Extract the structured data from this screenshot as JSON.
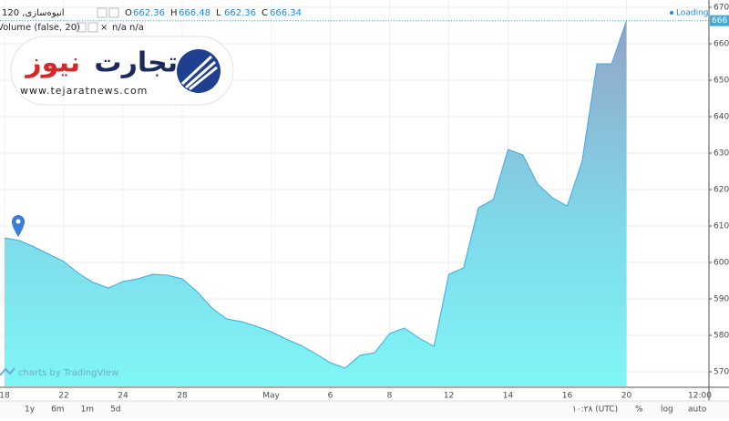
{
  "header": {
    "title": "انبوه‌سازی, 120",
    "ohlc": [
      {
        "label": "O",
        "value": 662.36
      },
      {
        "label": "H",
        "value": 666.48
      },
      {
        "label": "L",
        "value": 662.36
      },
      {
        "label": "C",
        "value": 666.34
      }
    ],
    "indicator": "Volume (false, 20)",
    "indicator_values": "n/a n/a",
    "status": "Loading"
  },
  "logo": {
    "brand_dark": "تجارت",
    "brand_red": "نیوز",
    "url": "www.tejaratnews.com"
  },
  "watermark": "charts by TradingView",
  "footer": {
    "ranges": [
      "1y",
      "6m",
      "1m",
      "5d"
    ],
    "time": "۱۰:۲۸ (UTC)",
    "options": [
      "%",
      "log",
      "auto"
    ]
  },
  "chart_data": {
    "type": "area",
    "categories": [
      "18",
      null,
      null,
      null,
      "22",
      null,
      null,
      null,
      "24",
      null,
      null,
      null,
      "28",
      null,
      null,
      null,
      null,
      null,
      "May",
      null,
      null,
      null,
      "6",
      null,
      null,
      null,
      "8",
      null,
      null,
      null,
      "12",
      null,
      null,
      null,
      "14",
      null,
      null,
      null,
      "16",
      null,
      null,
      null,
      "20"
    ],
    "values": [
      606.75,
      606,
      604.25,
      602.25,
      600.25,
      597,
      594.5,
      593,
      594.75,
      595.5,
      596.75,
      596.5,
      595.5,
      592,
      587.5,
      584.5,
      583.75,
      582.5,
      581,
      579,
      577.25,
      575,
      572.5,
      571,
      574.5,
      575.25,
      580.5,
      582,
      579.25,
      577,
      596.75,
      598.5,
      615,
      617.25,
      631,
      629.5,
      621.5,
      617.75,
      615.5,
      627.75,
      654.5,
      654.5,
      666.34
    ],
    "value_labels": [
      null,
      null,
      null,
      null,
      null,
      null,
      null,
      null,
      null,
      null,
      null,
      null,
      null,
      null,
      null,
      null,
      null,
      null,
      null,
      null,
      null,
      null,
      null,
      null,
      null,
      null,
      null,
      null,
      null,
      null,
      null,
      null,
      null,
      null,
      null,
      null,
      null,
      null,
      null,
      null,
      null,
      null,
      "666"
    ],
    "x_axis_end_label": "12:00",
    "color": "#3fa9d9",
    "ylim": [
      566,
      672
    ],
    "yticks": [
      570,
      580,
      590,
      600,
      610,
      620,
      630,
      640,
      650,
      660,
      670
    ],
    "grid": true
  }
}
